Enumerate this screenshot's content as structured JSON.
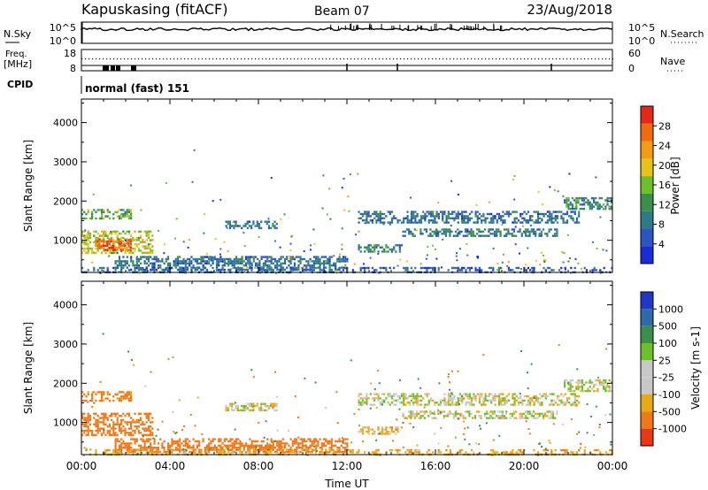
{
  "header": {
    "station": "Kapuskasing (fitACF)",
    "beam": "Beam 07",
    "date": "23/Aug/2018"
  },
  "aux_panels": {
    "noise": {
      "left_label": "N.Sky",
      "right_label": "N.Search",
      "left_ticks": [
        "10^5",
        "10^0"
      ],
      "right_ticks": [
        "10^5",
        "10^0"
      ]
    },
    "freq": {
      "left_label_line1": "Freq.",
      "left_label_line2": "[MHz]",
      "right_label": "Nave",
      "left_ticks": [
        "18",
        "8"
      ],
      "right_ticks": [
        "60",
        "0"
      ]
    },
    "cpid": {
      "label": "CPID",
      "text": "normal (fast) 151"
    }
  },
  "colors": {
    "power": [
      "#1a2cd6",
      "#2a55c4",
      "#2f7a88",
      "#3a8f4a",
      "#6cc02c",
      "#e6c21a",
      "#f39a16",
      "#f06a12",
      "#e5281a"
    ],
    "velocity": [
      "#2038c8",
      "#2f6aa8",
      "#3a8f4a",
      "#6cc02c",
      "#c8c8c8",
      "#c8c8c8",
      "#e8a818",
      "#f07818",
      "#e83818",
      "#e81818"
    ]
  },
  "chart_data": [
    {
      "type": "heatmap",
      "name": "power",
      "xlabel": "",
      "ylabel": "Slant Range [km]",
      "x_ticks": [
        "00:00",
        "04:00",
        "08:00",
        "12:00",
        "16:00",
        "20:00",
        "00:00"
      ],
      "y_ticks": [
        "1000",
        "2000",
        "3000",
        "4000"
      ],
      "y_tick_values": [
        1000,
        2000,
        3000,
        4000
      ],
      "ylim": [
        180,
        4600
      ],
      "xlim_hours": [
        0,
        24
      ],
      "colorbar": {
        "label": "Power [dB]",
        "ticks": [
          "4",
          "8",
          "12",
          "16",
          "20",
          "24",
          "28"
        ],
        "tick_values": [
          4,
          8,
          12,
          16,
          20,
          24,
          28
        ],
        "range": [
          0,
          32
        ]
      },
      "bands": [
        {
          "t0": 0.0,
          "t1": 2.2,
          "r0": 1550,
          "r1": 1800,
          "value": 14
        },
        {
          "t0": 0.0,
          "t1": 3.2,
          "r0": 700,
          "r1": 1250,
          "value": 18
        },
        {
          "t0": 0.6,
          "t1": 2.2,
          "r0": 750,
          "r1": 1050,
          "value": 27
        },
        {
          "t0": 6.5,
          "t1": 8.8,
          "r0": 1300,
          "r1": 1500,
          "value": 8
        },
        {
          "t0": 12.5,
          "t1": 22.5,
          "r0": 1450,
          "r1": 1750,
          "value": 8
        },
        {
          "t0": 14.5,
          "t1": 21.5,
          "r0": 1100,
          "r1": 1300,
          "value": 9
        },
        {
          "t0": 12.5,
          "t1": 14.5,
          "r0": 700,
          "r1": 900,
          "value": 10
        },
        {
          "t0": 21.8,
          "t1": 24.0,
          "r0": 1800,
          "r1": 2100,
          "value": 10
        },
        {
          "t0": 1.5,
          "t1": 12.0,
          "r0": 250,
          "r1": 600,
          "value": 8
        },
        {
          "t0": 0.0,
          "t1": 24.0,
          "r0": 180,
          "r1": 320,
          "value": 6
        }
      ]
    },
    {
      "type": "heatmap",
      "name": "velocity",
      "xlabel": "Time UT",
      "ylabel": "Slant Range [km]",
      "x_ticks": [
        "00:00",
        "04:00",
        "08:00",
        "12:00",
        "16:00",
        "20:00",
        "00:00"
      ],
      "y_ticks": [
        "1000",
        "2000",
        "3000",
        "4000"
      ],
      "y_tick_values": [
        1000,
        2000,
        3000,
        4000
      ],
      "ylim": [
        180,
        4600
      ],
      "xlim_hours": [
        0,
        24
      ],
      "colorbar": {
        "label": "Velocity [m s-1]",
        "ticks": [
          "1000",
          "500",
          "100",
          "25",
          "-25",
          "-100",
          "-500",
          "-1000"
        ]
      },
      "bands": [
        {
          "t0": 0.0,
          "t1": 2.2,
          "r0": 1550,
          "r1": 1800,
          "value": -150
        },
        {
          "t0": 0.0,
          "t1": 3.2,
          "r0": 700,
          "r1": 1250,
          "value": -200
        },
        {
          "t0": 6.5,
          "t1": 8.8,
          "r0": 1300,
          "r1": 1500,
          "value": 0
        },
        {
          "t0": 12.5,
          "t1": 22.5,
          "r0": 1450,
          "r1": 1750,
          "value": 0
        },
        {
          "t0": 14.5,
          "t1": 21.5,
          "r0": 1100,
          "r1": 1300,
          "value": 0
        },
        {
          "t0": 12.5,
          "t1": 14.5,
          "r0": 700,
          "r1": 900,
          "value": -50
        },
        {
          "t0": 21.8,
          "t1": 24.0,
          "r0": 1800,
          "r1": 2100,
          "value": 0
        },
        {
          "t0": 1.5,
          "t1": 12.0,
          "r0": 250,
          "r1": 600,
          "value": -300
        },
        {
          "t0": 0.0,
          "t1": 24.0,
          "r0": 180,
          "r1": 320,
          "value": -80
        }
      ]
    }
  ]
}
